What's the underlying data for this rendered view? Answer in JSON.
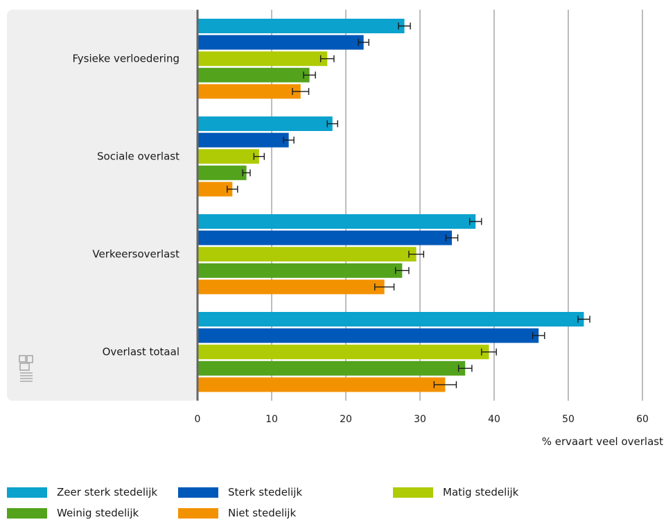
{
  "chart_data": {
    "type": "bar",
    "orientation": "horizontal",
    "categories": [
      "Fysieke verloedering",
      "Sociale overlast",
      "Verkeersoverlast",
      "Overlast totaal"
    ],
    "series": [
      {
        "name": "Zeer sterk stedelijk",
        "color": "#0ba2cd",
        "values": [
          27.9,
          18.2,
          37.5,
          52.1
        ],
        "errors": [
          0.8,
          0.7,
          0.8,
          0.8
        ]
      },
      {
        "name": "Sterk stedelijk",
        "color": "#0058b8",
        "values": [
          22.4,
          12.3,
          34.3,
          46.0
        ],
        "errors": [
          0.7,
          0.7,
          0.8,
          0.8
        ]
      },
      {
        "name": "Matig stedelijk",
        "color": "#afcb05",
        "values": [
          17.5,
          8.3,
          29.5,
          39.3
        ],
        "errors": [
          0.9,
          0.7,
          1.0,
          1.0
        ]
      },
      {
        "name": "Weinig stedelijk",
        "color": "#53a31d",
        "values": [
          15.1,
          6.6,
          27.6,
          36.1
        ],
        "errors": [
          0.8,
          0.5,
          0.9,
          0.9
        ]
      },
      {
        "name": "Niet stedelijk",
        "color": "#f39200",
        "values": [
          13.9,
          4.7,
          25.2,
          33.4
        ],
        "errors": [
          1.1,
          0.7,
          1.3,
          1.5
        ]
      }
    ],
    "xlim": [
      0,
      60
    ],
    "xticks": [
      0,
      10,
      20,
      30,
      40,
      50,
      60
    ],
    "xlabel": "% ervaart veel overlast",
    "grid": true,
    "legend_position": "bottom"
  },
  "logo": "cbs-logo-icon"
}
